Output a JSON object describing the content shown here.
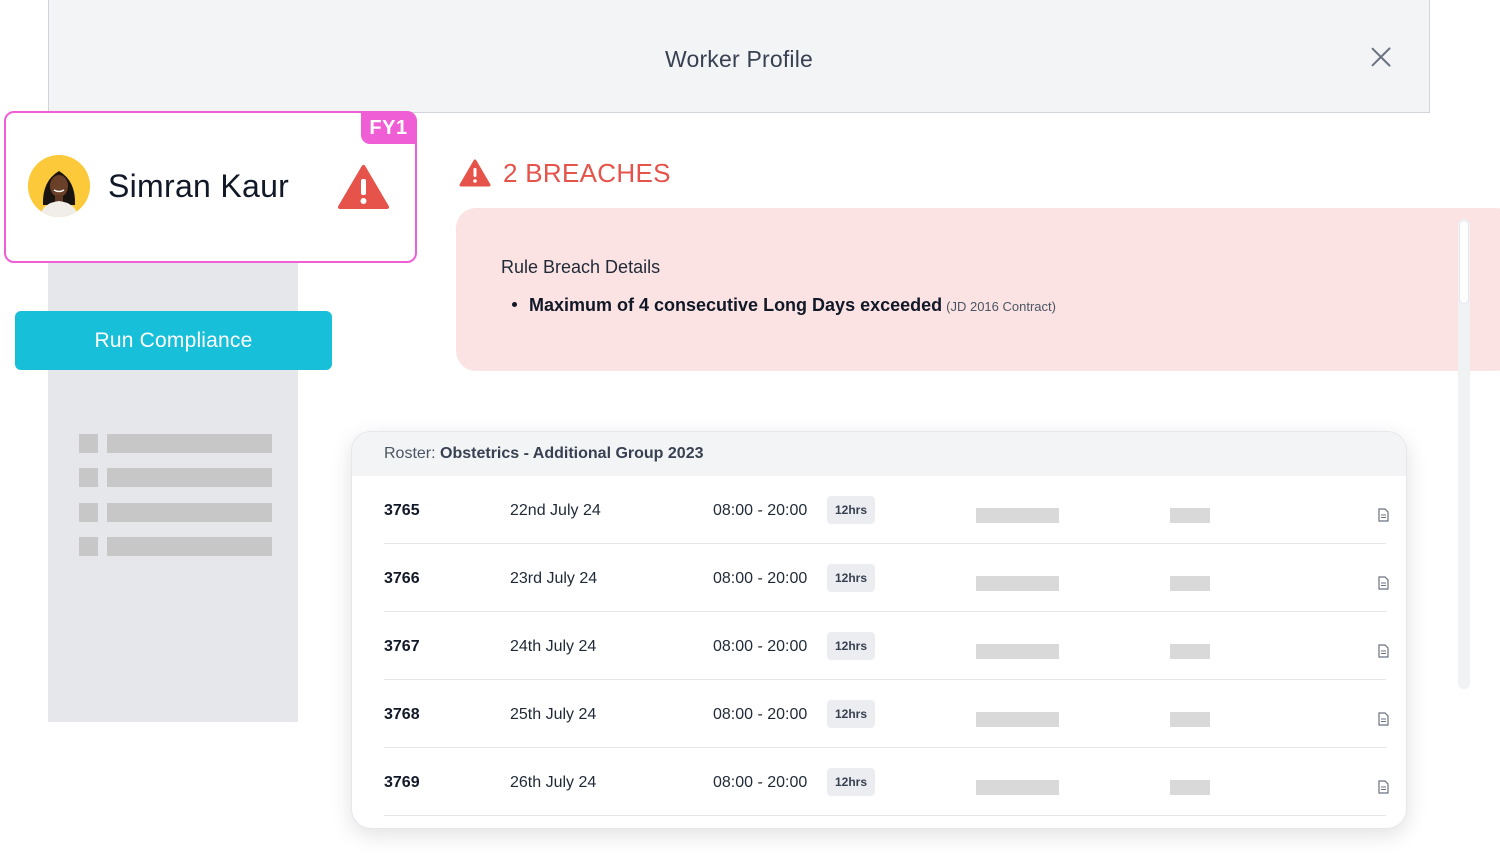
{
  "header": {
    "title": "Worker Profile"
  },
  "worker": {
    "name": "Simran Kaur",
    "grade_badge": "FY1"
  },
  "actions": {
    "run_compliance_label": "Run Compliance"
  },
  "breaches": {
    "heading": "2 BREACHES",
    "details_title": "Rule Breach Details",
    "items": [
      {
        "rule": "Maximum of 4 consecutive Long Days exceeded",
        "contract": "(JD 2016 Contract)"
      }
    ]
  },
  "roster": {
    "label": "Roster:",
    "name": "Obstetrics - Additional Group 2023",
    "rows": [
      {
        "id": "3765",
        "date": "22nd July 24",
        "time": "08:00 - 20:00",
        "hours": "12hrs"
      },
      {
        "id": "3766",
        "date": "23rd July 24",
        "time": "08:00 - 20:00",
        "hours": "12hrs"
      },
      {
        "id": "3767",
        "date": "24th July 24",
        "time": "08:00 - 20:00",
        "hours": "12hrs"
      },
      {
        "id": "3768",
        "date": "25th July 24",
        "time": "08:00 - 20:00",
        "hours": "12hrs"
      },
      {
        "id": "3769",
        "date": "26th July 24",
        "time": "08:00 - 20:00",
        "hours": "12hrs"
      }
    ]
  },
  "colors": {
    "accent_pink": "#f05ed6",
    "accent_cyan": "#17bfd9",
    "breach_red": "#e5534b",
    "breach_bg": "#fbe3e3"
  },
  "icons": {
    "close": "close-icon",
    "warning": "warning-icon",
    "document": "document-icon"
  }
}
